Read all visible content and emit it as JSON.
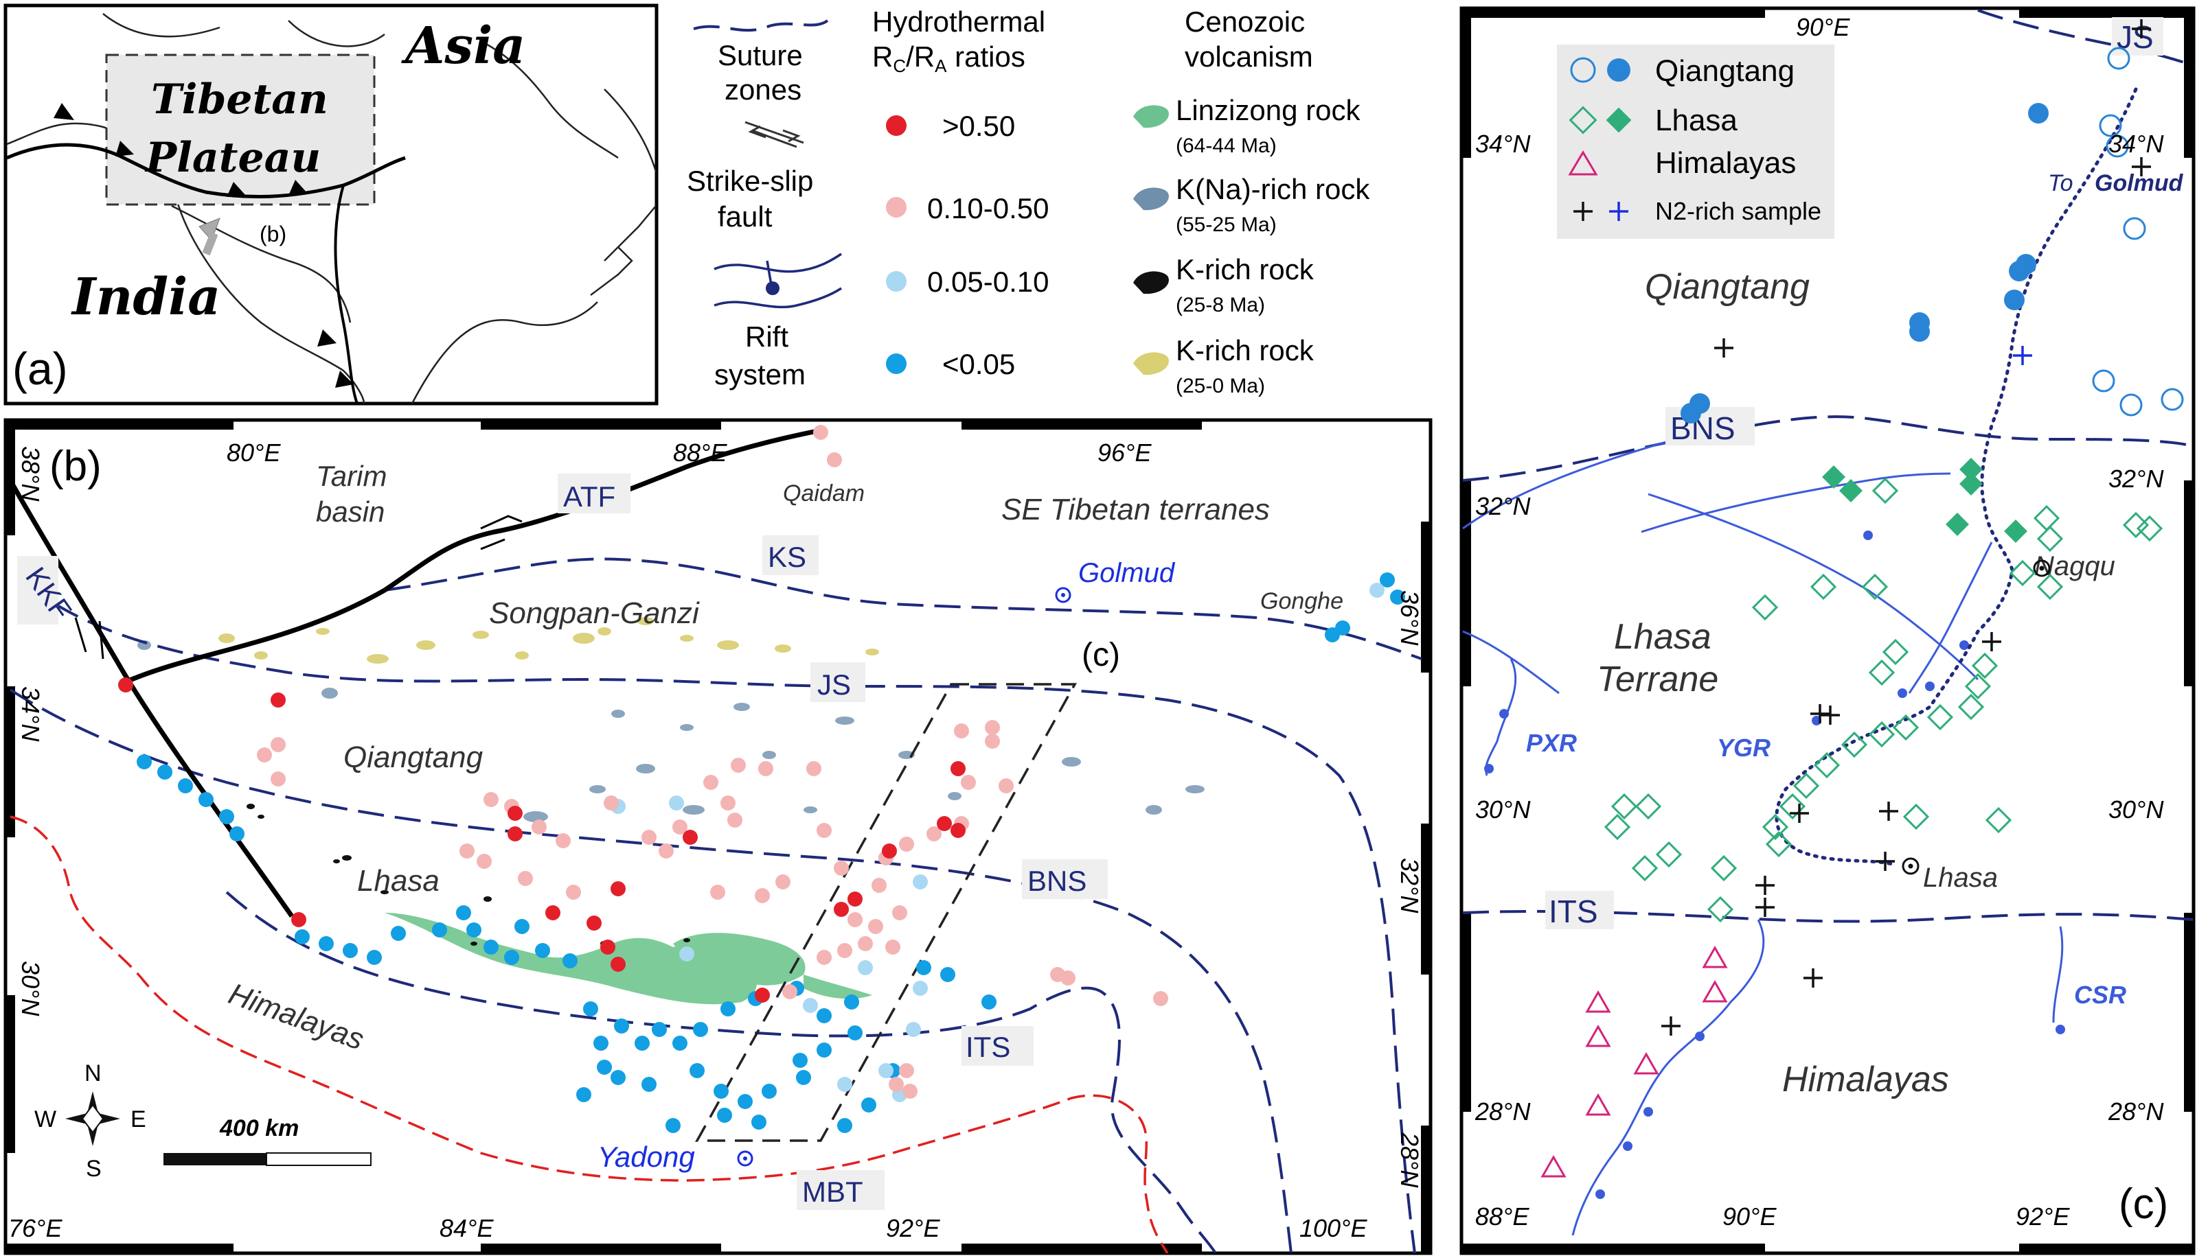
{
  "panel_a": {
    "label": "(a)",
    "asia": "Asia",
    "india": "India",
    "plateau_line1": "Tibetan",
    "plateau_line2": "Plateau",
    "inset_label": "(b)"
  },
  "legend": {
    "suture_label_1": "Suture",
    "suture_label_2": "zones",
    "strike_slip_1": "Strike-slip",
    "strike_slip_2": "fault",
    "rift_1": "Rift",
    "rift_2": "system",
    "hydro_title_1": "Hydrothermal",
    "hydro_title_2": "RC/RA ratios",
    "ratio_classes": [
      {
        "label": ">0.50",
        "color": "#e3202a"
      },
      {
        "label": "0.10-0.50",
        "color": "#f4b4b4"
      },
      {
        "label": "0.05-0.10",
        "color": "#a9d8f3"
      },
      {
        "label": "<0.05",
        "color": "#129fe3"
      }
    ],
    "volc_title_1": "Cenozoic",
    "volc_title_2": "volcanism",
    "volcanic_units": [
      {
        "label": "Linzizong rock",
        "age": "(64-44 Ma)",
        "color": "#6cc28e"
      },
      {
        "label": "K(Na)-rich rock",
        "age": "(55-25 Ma)",
        "color": "#6f8fab"
      },
      {
        "label": "K-rich rock",
        "age": "(25-8 Ma)",
        "color": "#111111"
      },
      {
        "label": "K-rich rock",
        "age": "(25-0 Ma)",
        "color": "#d9cf73"
      }
    ]
  },
  "panel_b": {
    "label": "(b)",
    "lon_labels": [
      "76°E",
      "80°E",
      "84°E",
      "88°E",
      "92°E",
      "96°E",
      "100°E"
    ],
    "lat_labels": [
      "38°N",
      "34°N",
      "30°N",
      "36°N",
      "32°N",
      "28°N"
    ],
    "places": {
      "tarim_1": "Tarim",
      "tarim_2": "basin",
      "qaidam": "Qaidam",
      "se_tibet": "SE Tibetan terranes",
      "golmud": "Golmud",
      "gonghe": "Gonghe",
      "songpan": "Songpan-Ganzi",
      "qiangtang": "Qiangtang",
      "lhasa": "Lhasa",
      "himalayas": "Himalayas",
      "yadong": "Yadong",
      "inset_c": "(c)"
    },
    "zones": {
      "atf": "ATF",
      "kkf": "KKF",
      "ks": "KS",
      "js": "JS",
      "bns": "BNS",
      "its": "ITS",
      "mbt": "MBT"
    },
    "scale_label": "400 km",
    "compass": {
      "n": "N",
      "s": "S",
      "e": "E",
      "w": "W"
    }
  },
  "panel_c": {
    "label": "(c)",
    "lon_labels": [
      "90°E",
      "88°E",
      "90°E",
      "92°E"
    ],
    "lat_labels": [
      "34°N",
      "32°N",
      "30°N",
      "28°N",
      "34°N",
      "32°N",
      "30°N",
      "28°N"
    ],
    "legend": {
      "qiangtang": "Qiangtang",
      "lhasa": "Lhasa",
      "himalayas": "Himalayas",
      "n2": "N2-rich sample",
      "colors": {
        "qiangtang": "#2a84d6",
        "lhasa": "#2fae7a",
        "himalayas": "#d4237a",
        "n2_blue": "#1a2ee0"
      }
    },
    "places": {
      "qiangtang": "Qiangtang",
      "lhasa_1": "Lhasa",
      "lhasa_2": "Terrane",
      "himalayas": "Himalayas",
      "nagqu": "Nagqu",
      "lhasa_city": "Lhasa",
      "to_golmud_1": "To",
      "to_golmud_2": "Golmud"
    },
    "zones": {
      "js": "JS",
      "bns": "BNS",
      "its": "ITS"
    },
    "rifts": {
      "pxr": "PXR",
      "ygr": "YGR",
      "csr": "CSR"
    }
  }
}
